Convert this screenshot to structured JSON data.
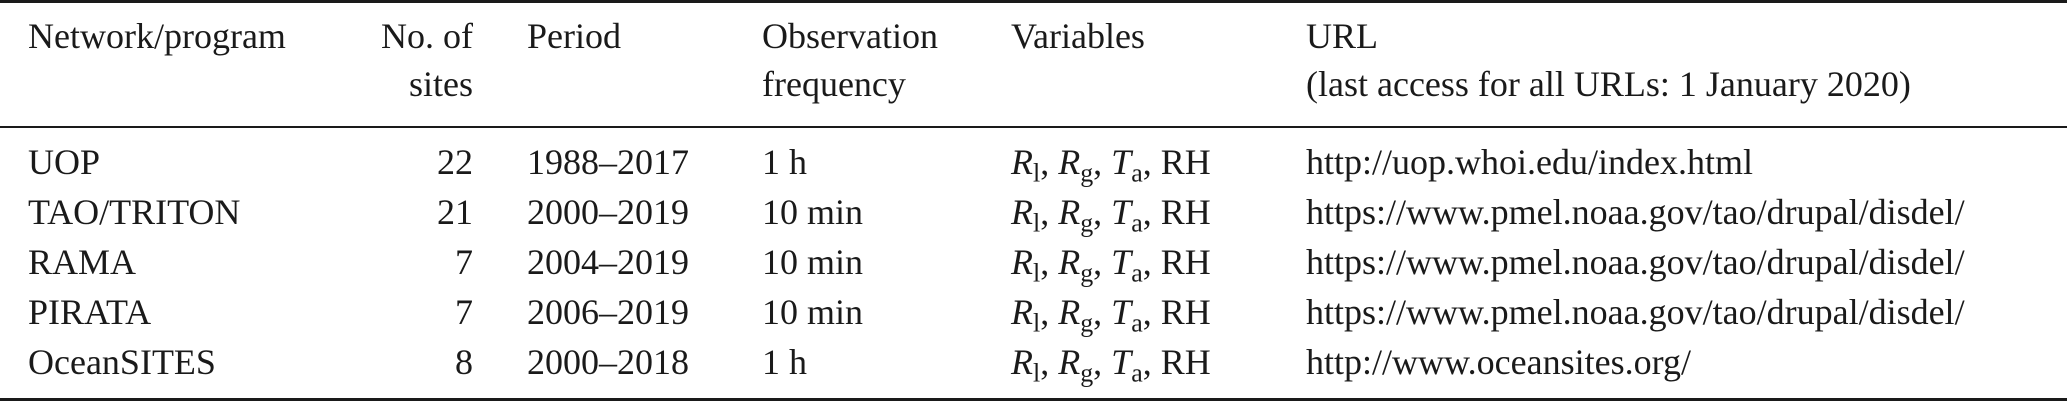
{
  "table": {
    "headers": {
      "network": "Network/program",
      "sites_l1": "No. of",
      "sites_l2": "sites",
      "period": "Period",
      "freq_l1": "Observation",
      "freq_l2": "frequency",
      "variables": "Variables",
      "url_l1": "URL",
      "url_l2": "(last access for all URLs: 1 January 2020)"
    },
    "variables": {
      "r": "R",
      "l": "l",
      "g": "g",
      "t": "T",
      "a": "a",
      "rh": "RH",
      "sep": ", "
    },
    "rows": [
      {
        "network": "UOP",
        "sites": "22",
        "period": "1988–2017",
        "freq": "1 h",
        "url": "http://uop.whoi.edu/index.html"
      },
      {
        "network": "TAO/TRITON",
        "sites": "21",
        "period": "2000–2019",
        "freq": "10 min",
        "url": "https://www.pmel.noaa.gov/tao/drupal/disdel/"
      },
      {
        "network": "RAMA",
        "sites": "7",
        "period": "2004–2019",
        "freq": "10 min",
        "url": "https://www.pmel.noaa.gov/tao/drupal/disdel/"
      },
      {
        "network": "PIRATA",
        "sites": "7",
        "period": "2006–2019",
        "freq": "10 min",
        "url": "https://www.pmel.noaa.gov/tao/drupal/disdel/"
      },
      {
        "network": "OceanSITES",
        "sites": "8",
        "period": "2000–2018",
        "freq": "1 h",
        "url": "http://www.oceansites.org/"
      }
    ]
  }
}
